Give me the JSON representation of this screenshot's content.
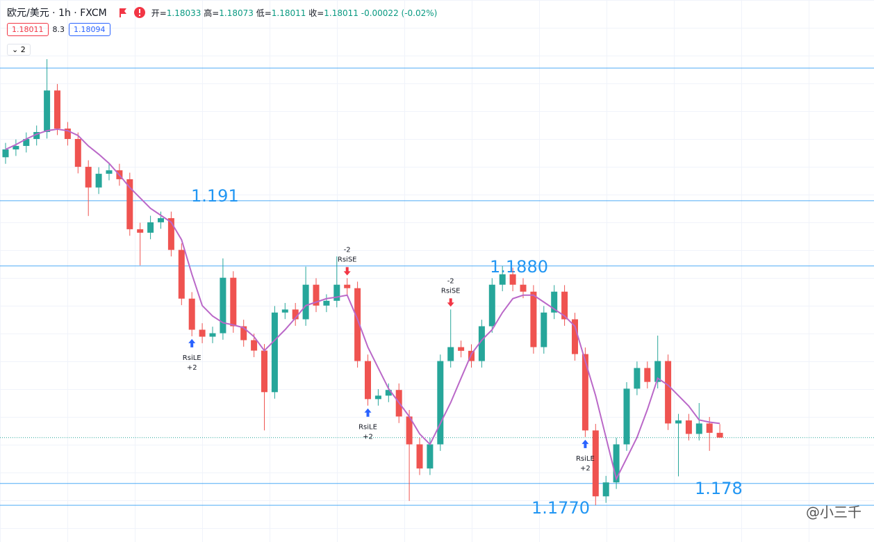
{
  "header": {
    "symbol": "欧元/美元 · 1h · FXCM",
    "open_label": "开=",
    "open": "1.18033",
    "high_label": "高=",
    "high": "1.18073",
    "low_label": "低=",
    "low": "1.18011",
    "close_label": "收=",
    "close": "1.18011",
    "change": "-0.00022 (-0.02%)",
    "bid": "1.18011",
    "spread": "8.3",
    "ask": "1.18094",
    "indicators": "2"
  },
  "watermark": "@小三千",
  "chart_data": {
    "type": "candlestick",
    "ylim": [
      1.17531,
      1.20023
    ],
    "open": [
      1.193,
      1.19336,
      1.19352,
      1.19384,
      1.19416,
      1.19607,
      1.19432,
      1.19384,
      1.19256,
      1.19161,
      1.19224,
      1.1924,
      1.19199,
      1.18969,
      1.18953,
      1.19001,
      1.1902,
      1.18874,
      1.1865,
      1.18507,
      1.18475,
      1.18491,
      1.18746,
      1.18523,
      1.18459,
      1.18411,
      1.1822,
      1.18586,
      1.186,
      1.18555,
      1.18714,
      1.18618,
      1.1864,
      1.18714,
      1.18698,
      1.18363,
      1.18188,
      1.18204,
      1.1823,
      1.18108,
      1.1798,
      1.17869,
      1.1798,
      1.18363,
      1.18427,
      1.1841,
      1.18363,
      1.18523,
      1.18714,
      1.18762,
      1.18714,
      1.18682,
      1.18427,
      1.18586,
      1.18682,
      1.18555,
      1.18395,
      1.18044,
      1.17741,
      1.17805,
      1.1798,
      1.18236,
      1.18331,
      1.18267,
      1.18363,
      1.18076,
      1.1809,
      1.18028,
      1.18076,
      1.18033
    ],
    "high": [
      1.19366,
      1.19382,
      1.19414,
      1.19446,
      1.19751,
      1.19637,
      1.19462,
      1.19414,
      1.19286,
      1.19254,
      1.1927,
      1.1927,
      1.19229,
      1.18999,
      1.19031,
      1.1905,
      1.1905,
      1.18904,
      1.1868,
      1.18537,
      1.18521,
      1.18835,
      1.18776,
      1.18553,
      1.18489,
      1.18441,
      1.18616,
      1.1863,
      1.1863,
      1.18797,
      1.18744,
      1.1867,
      1.18844,
      1.18744,
      1.18728,
      1.18393,
      1.18234,
      1.1826,
      1.1826,
      1.18138,
      1.1801,
      1.1801,
      1.18393,
      1.186,
      1.18457,
      1.1844,
      1.18553,
      1.18744,
      1.188,
      1.18792,
      1.18744,
      1.18712,
      1.18616,
      1.18712,
      1.18712,
      1.18585,
      1.18425,
      1.18074,
      1.17835,
      1.1801,
      1.18266,
      1.18361,
      1.18361,
      1.1848,
      1.18393,
      1.1812,
      1.1812,
      1.1817,
      1.18106,
      1.18073
    ],
    "low": [
      1.1927,
      1.19306,
      1.19322,
      1.19354,
      1.19386,
      1.19402,
      1.19354,
      1.19226,
      1.1903,
      1.19131,
      1.19194,
      1.19169,
      1.18939,
      1.18803,
      1.18923,
      1.18971,
      1.18844,
      1.1862,
      1.18477,
      1.18445,
      1.18445,
      1.18461,
      1.18493,
      1.18429,
      1.18381,
      1.18044,
      1.1819,
      1.18556,
      1.18525,
      1.18525,
      1.18588,
      1.18588,
      1.1861,
      1.18668,
      1.18333,
      1.18158,
      1.18158,
      1.18174,
      1.18078,
      1.1772,
      1.17839,
      1.17839,
      1.1795,
      1.18333,
      1.1838,
      1.18333,
      1.18333,
      1.18493,
      1.18684,
      1.18684,
      1.18652,
      1.18397,
      1.18397,
      1.18556,
      1.18525,
      1.18365,
      1.18014,
      1.177,
      1.17711,
      1.17775,
      1.1795,
      1.18206,
      1.18237,
      1.18237,
      1.18046,
      1.17833,
      1.17998,
      1.17998,
      1.1795,
      1.18011
    ],
    "close": [
      1.19336,
      1.19352,
      1.19384,
      1.19416,
      1.19607,
      1.19432,
      1.19384,
      1.19256,
      1.19161,
      1.19224,
      1.1924,
      1.19199,
      1.18969,
      1.18953,
      1.19001,
      1.1902,
      1.18874,
      1.1865,
      1.18507,
      1.18475,
      1.18491,
      1.18746,
      1.18523,
      1.18459,
      1.18411,
      1.1822,
      1.18586,
      1.186,
      1.18555,
      1.18714,
      1.18618,
      1.1864,
      1.18714,
      1.18698,
      1.18363,
      1.18188,
      1.18204,
      1.1823,
      1.18108,
      1.1798,
      1.17869,
      1.1798,
      1.18363,
      1.18427,
      1.1841,
      1.18363,
      1.18523,
      1.18714,
      1.18762,
      1.18714,
      1.18682,
      1.18427,
      1.18586,
      1.18682,
      1.18555,
      1.18395,
      1.18044,
      1.17741,
      1.17805,
      1.1798,
      1.18236,
      1.18331,
      1.18267,
      1.18363,
      1.18076,
      1.1809,
      1.18028,
      1.18076,
      1.18033,
      1.18011
    ],
    "up_color": "#26a69a",
    "down_color": "#ef5350",
    "ma": {
      "color": "#ba68c8",
      "values": [
        1.19336,
        1.19358,
        1.19384,
        1.19406,
        1.19422,
        1.19429,
        1.19422,
        1.194,
        1.19352,
        1.19314,
        1.19272,
        1.19218,
        1.19161,
        1.19113,
        1.19065,
        1.19033,
        1.19001,
        1.18921,
        1.18762,
        1.18618,
        1.1857,
        1.18539,
        1.18529,
        1.18516,
        1.18475,
        1.18411,
        1.18459,
        1.18507,
        1.18561,
        1.18618,
        1.18634,
        1.1865,
        1.18657,
        1.18666,
        1.18555,
        1.18427,
        1.18331,
        1.18236,
        1.18172,
        1.18108,
        1.18028,
        1.1798,
        1.18076,
        1.18172,
        1.18284,
        1.18395,
        1.18459,
        1.18507,
        1.18586,
        1.1865,
        1.18666,
        1.18666,
        1.18634,
        1.18602,
        1.1857,
        1.18523,
        1.18363,
        1.18204,
        1.18012,
        1.17821,
        1.17916,
        1.18012,
        1.1814,
        1.18284,
        1.18252,
        1.18204,
        1.18156,
        1.18092,
        1.18082,
        1.18076
      ]
    },
    "levels": [
      {
        "value": 1.1971
      },
      {
        "value": 1.191,
        "label": "1.191"
      },
      {
        "value": 1.188,
        "label": "1.1880"
      },
      {
        "value": 1.178,
        "label": "1.178"
      },
      {
        "value": 1.177,
        "label": "1.1770"
      }
    ],
    "level_color": "#2196f3",
    "last_price": 1.18011,
    "signals": [
      {
        "index": 18,
        "label": "RsiLE",
        "qty": "+2"
      },
      {
        "index": 33,
        "label": "RsiSE",
        "qty": "-2"
      },
      {
        "index": 35,
        "label": "RsiLE",
        "qty": "+2"
      },
      {
        "index": 43,
        "label": "RsiSE",
        "qty": "-2"
      },
      {
        "index": 56,
        "label": "RsiLE",
        "qty": "+2"
      }
    ]
  }
}
